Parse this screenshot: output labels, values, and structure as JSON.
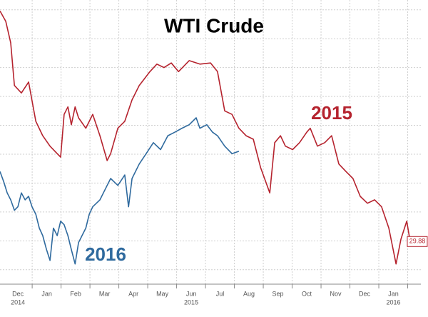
{
  "chart_data": {
    "type": "line",
    "title": "WTI Crude",
    "categories": [
      "Dec",
      "Jan",
      "Feb",
      "Mar",
      "Apr",
      "May",
      "Jun",
      "Jul",
      "Aug",
      "Sep",
      "Oct",
      "Nov",
      "Dec",
      "Jan"
    ],
    "year_labels": [
      "2014",
      null,
      null,
      null,
      null,
      null,
      "2015",
      null,
      null,
      null,
      null,
      null,
      null,
      "2016"
    ],
    "xlim": [
      -0.62,
      13.95
    ],
    "ylim": [
      22.5,
      71.7
    ],
    "yticks": [
      25,
      30,
      35,
      40,
      45,
      50,
      55,
      60,
      65,
      70
    ],
    "grid": true,
    "series": [
      {
        "name": "2015",
        "color": "#b5232e",
        "x": [
          -0.62,
          -0.42,
          -0.25,
          -0.12,
          0.12,
          0.37,
          0.62,
          0.86,
          1.11,
          1.36,
          1.48,
          1.6,
          1.73,
          1.85,
          1.98,
          2.1,
          2.35,
          2.59,
          2.84,
          3.09,
          3.21,
          3.46,
          3.7,
          3.95,
          4.2,
          4.57,
          4.81,
          5.06,
          5.31,
          5.56,
          5.93,
          6.3,
          6.67,
          6.91,
          7.16,
          7.41,
          7.65,
          7.9,
          8.15,
          8.4,
          8.72,
          8.89,
          9.09,
          9.26,
          9.51,
          9.75,
          10.0,
          10.12,
          10.37,
          10.62,
          10.86,
          11.11,
          11.36,
          11.6,
          11.85,
          12.1,
          12.35,
          12.59,
          12.84,
          13.09,
          13.26,
          13.46,
          13.58
        ],
        "values": [
          69.8,
          68.0,
          64.3,
          56.9,
          55.6,
          57.5,
          50.7,
          48.2,
          46.4,
          45.1,
          44.5,
          51.9,
          53.2,
          50.1,
          53.2,
          51.3,
          49.5,
          51.9,
          48.2,
          43.9,
          45.1,
          49.5,
          50.7,
          54.4,
          56.9,
          59.3,
          60.6,
          60.0,
          60.8,
          59.3,
          61.2,
          60.6,
          60.8,
          59.3,
          52.5,
          51.9,
          49.5,
          48.2,
          47.6,
          42.7,
          38.3,
          47.0,
          48.2,
          46.4,
          45.8,
          47.0,
          48.8,
          49.5,
          46.4,
          47.0,
          48.2,
          43.3,
          42.0,
          40.8,
          37.7,
          36.5,
          37.1,
          35.9,
          32.2,
          26.0,
          30.3,
          33.4,
          29.88
        ],
        "last_label": "29.88"
      },
      {
        "name": "2016",
        "color": "#2f6a9e",
        "x": [
          -0.62,
          -0.49,
          -0.37,
          -0.25,
          -0.12,
          0,
          0.12,
          0.25,
          0.37,
          0.49,
          0.62,
          0.74,
          0.86,
          0.99,
          1.11,
          1.23,
          1.36,
          1.48,
          1.6,
          1.73,
          1.85,
          1.98,
          2.1,
          2.22,
          2.35,
          2.47,
          2.59,
          2.84,
          3.09,
          3.21,
          3.46,
          3.7,
          3.83,
          3.95,
          4.2,
          4.44,
          4.69,
          4.94,
          5.19,
          5.43,
          5.68,
          5.93,
          6.17,
          6.3,
          6.54,
          6.74,
          6.91,
          7.16,
          7.41,
          7.65
        ],
        "values": [
          42.0,
          40.2,
          38.3,
          37.1,
          35.3,
          35.9,
          38.3,
          37.1,
          37.7,
          35.9,
          34.6,
          32.2,
          30.9,
          28.5,
          26.6,
          32.2,
          30.9,
          33.4,
          32.8,
          30.9,
          28.5,
          26.0,
          29.7,
          30.9,
          32.2,
          34.6,
          35.9,
          37.1,
          39.6,
          40.8,
          39.6,
          41.4,
          35.9,
          40.8,
          43.3,
          45.1,
          47.0,
          45.8,
          48.2,
          48.8,
          49.5,
          50.1,
          51.3,
          49.5,
          50.1,
          48.8,
          48.2,
          46.4,
          45.1,
          45.5
        ]
      }
    ]
  }
}
